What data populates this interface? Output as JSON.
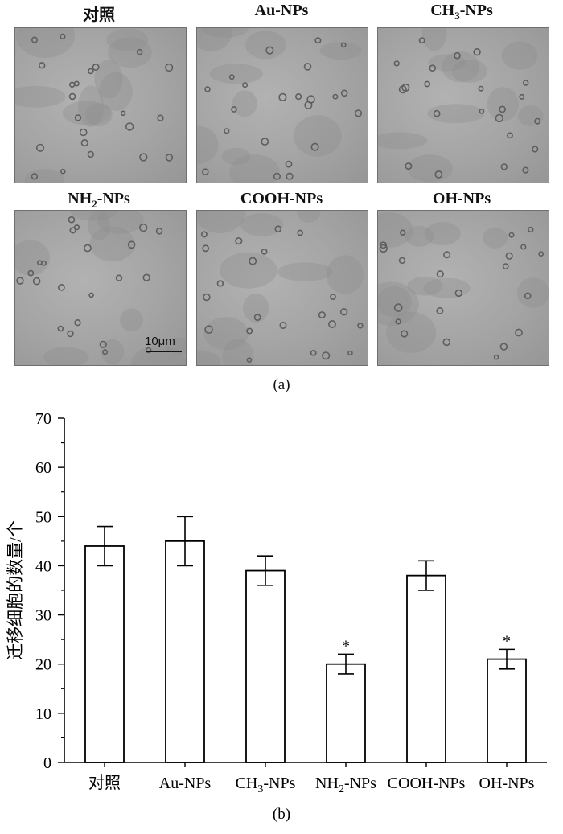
{
  "panel_a": {
    "label": "(a)",
    "images": [
      {
        "title": "对照"
      },
      {
        "title": "Au-NPs"
      },
      {
        "title_main": "CH",
        "title_sub": "3",
        "title_tail": "-NPs"
      },
      {
        "title_main": "NH",
        "title_sub": "2",
        "title_tail": "-NPs"
      },
      {
        "title": "COOH-NPs"
      },
      {
        "title": "OH-NPs"
      }
    ],
    "scale_bar": "10μm"
  },
  "panel_b": {
    "label": "(b)"
  },
  "chart_data": {
    "type": "bar",
    "categories": [
      "对照",
      "Au-NPs",
      "CH3-NPs",
      "NH2-NPs",
      "COOH-NPs",
      "OH-NPs"
    ],
    "category_parts": [
      {
        "main": "对照",
        "sub": "",
        "tail": ""
      },
      {
        "main": "Au-NPs",
        "sub": "",
        "tail": ""
      },
      {
        "main": "CH",
        "sub": "3",
        "tail": "-NPs"
      },
      {
        "main": "NH",
        "sub": "2",
        "tail": "-NPs"
      },
      {
        "main": "COOH-NPs",
        "sub": "",
        "tail": ""
      },
      {
        "main": "OH-NPs",
        "sub": "",
        "tail": ""
      }
    ],
    "values": [
      44,
      45,
      39,
      20,
      38,
      21
    ],
    "errors": [
      4,
      5,
      3,
      2,
      3,
      2
    ],
    "significance": [
      "",
      "",
      "",
      "*",
      "",
      "*"
    ],
    "ylabel": "迁移细胞的数量/个",
    "ylim": [
      0,
      70
    ],
    "yticks": [
      0,
      10,
      20,
      30,
      40,
      50,
      60,
      70
    ],
    "grid": false,
    "colors": {
      "bar_fill": "#ffffff",
      "bar_stroke": "#000000",
      "cell": "#5e5e5e"
    }
  }
}
